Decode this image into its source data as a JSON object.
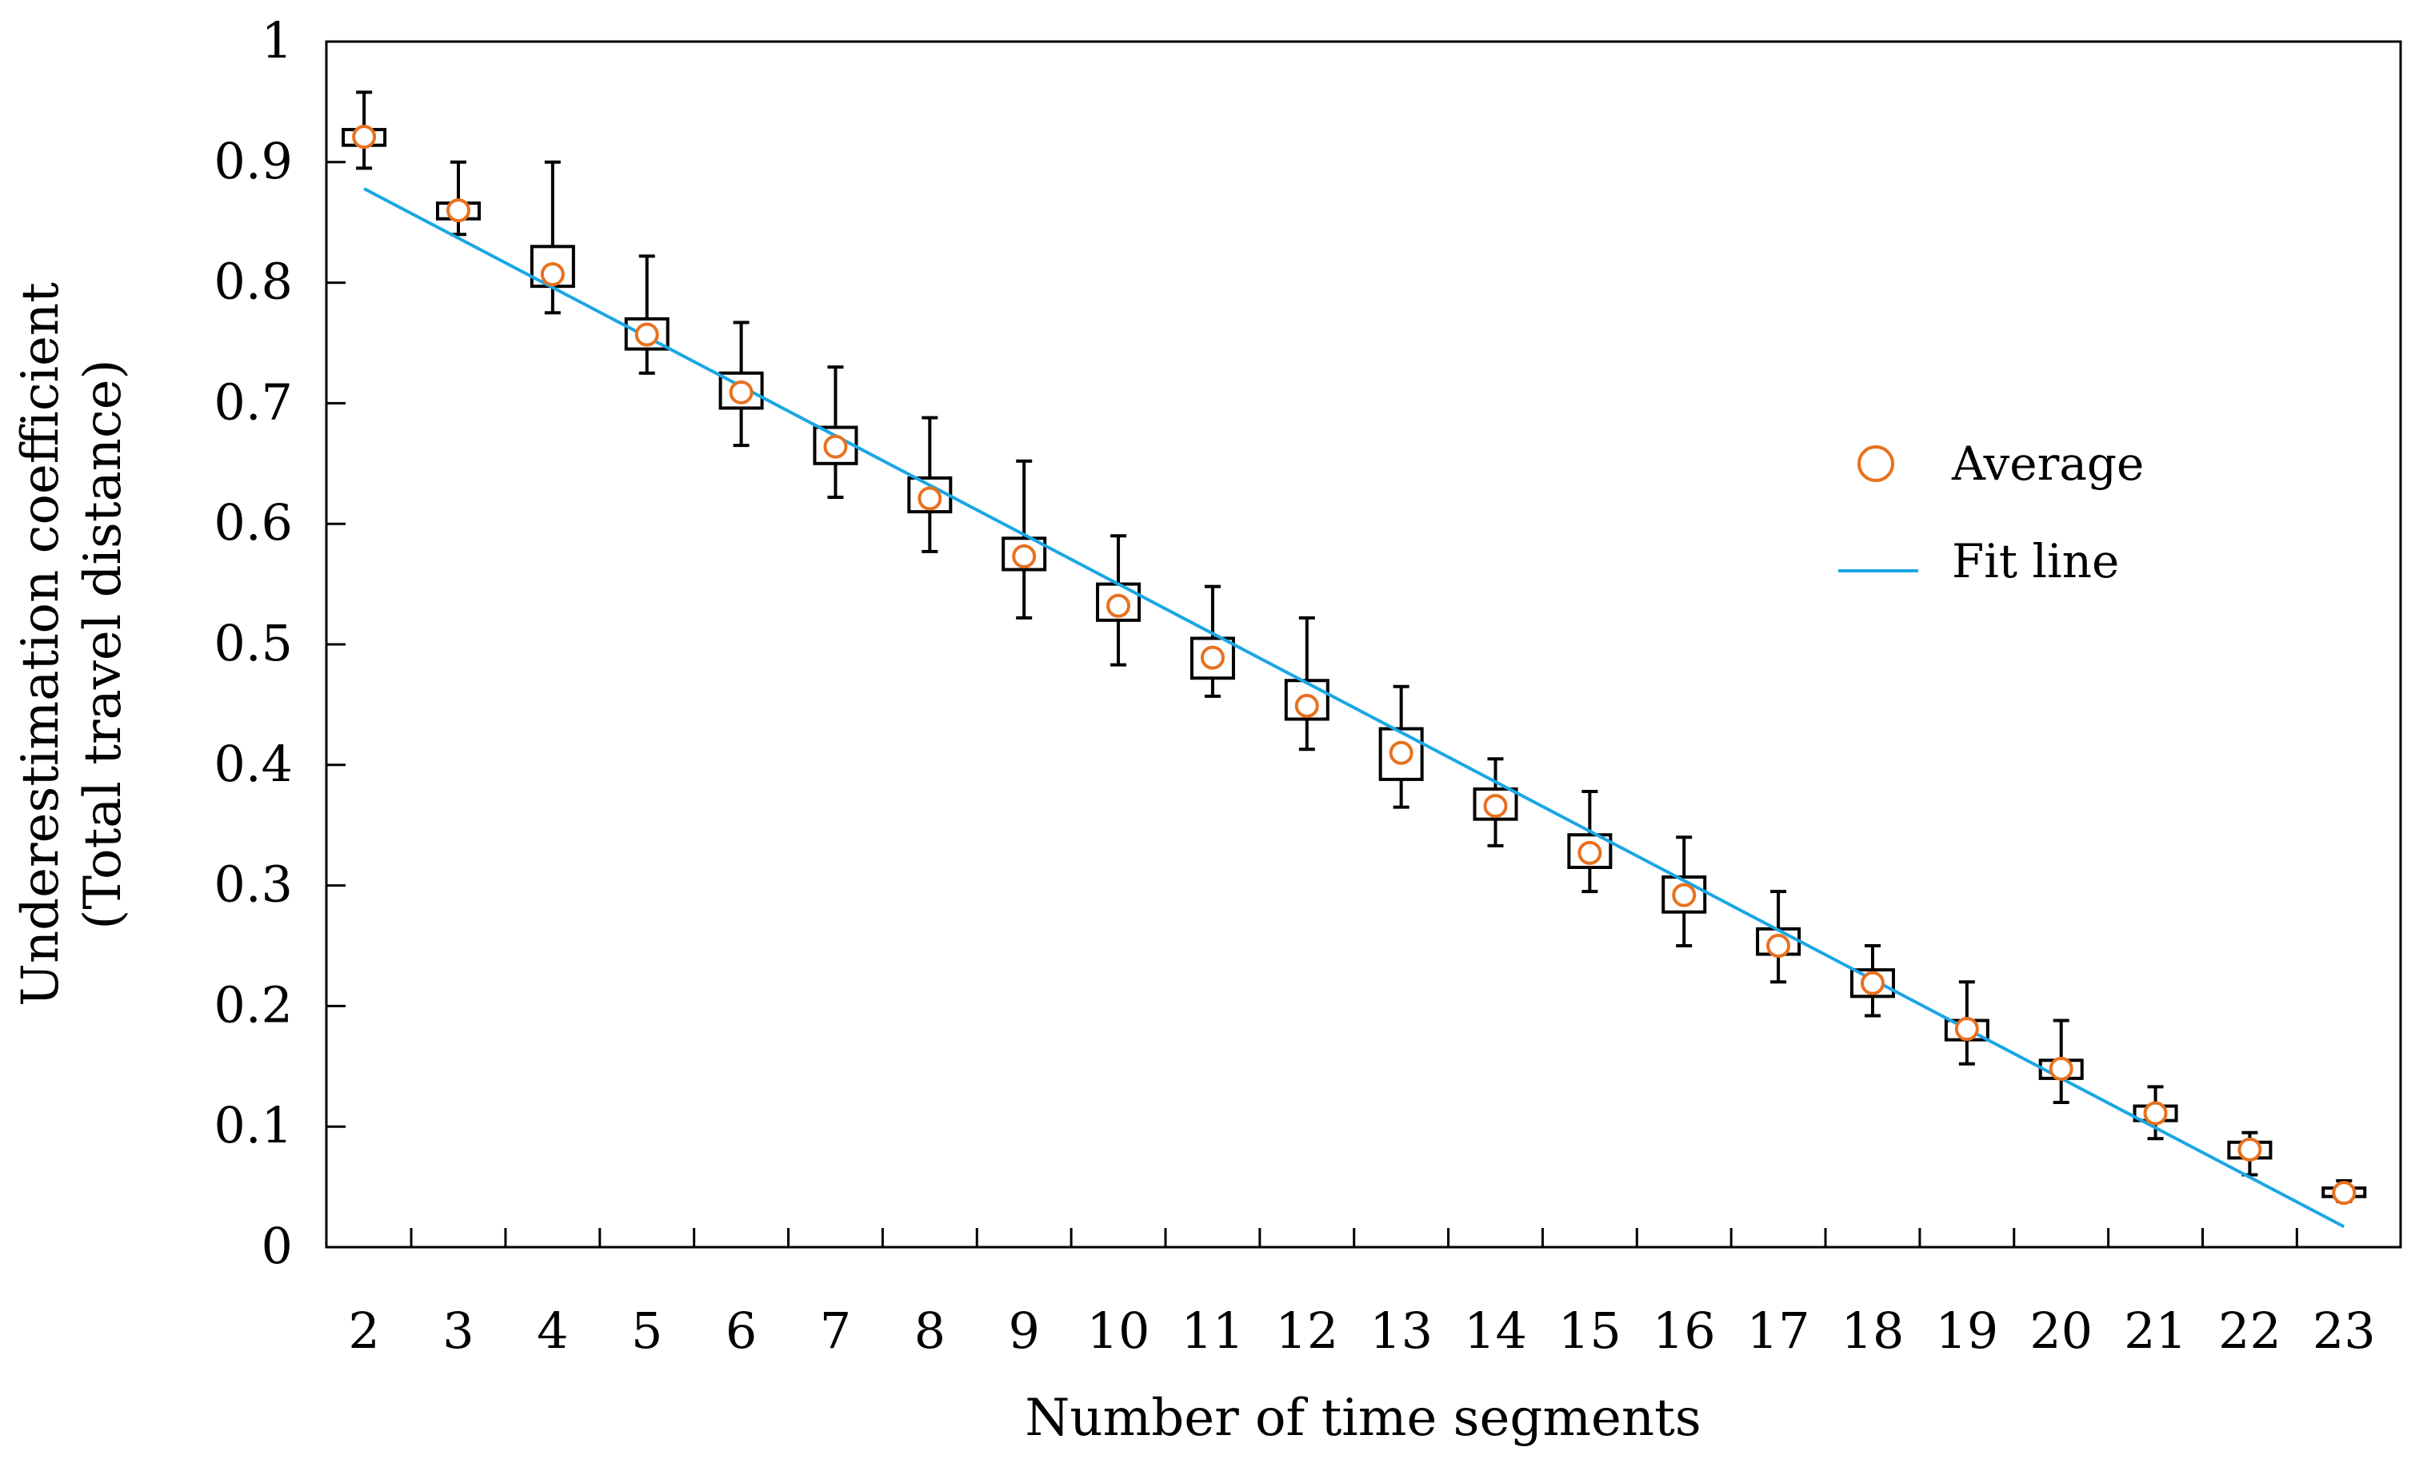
{
  "chart_data": {
    "type": "box",
    "title": "",
    "xlabel": "Number of time segments",
    "ylabel": [
      "Underestimation coefficient",
      "(Total travel distance)"
    ],
    "ylim": [
      0,
      1
    ],
    "yticks": [
      0,
      0.1,
      0.2,
      0.3,
      0.4,
      0.5,
      0.6,
      0.7,
      0.8,
      0.9,
      1
    ],
    "ytick_labels": [
      "0",
      "0.1",
      "0.2",
      "0.3",
      "0.4",
      "0.5",
      "0.6",
      "0.7",
      "0.8",
      "0.9",
      "1"
    ],
    "xlim": [
      1.6,
      23.6
    ],
    "categories": [
      "2",
      "3",
      "4",
      "5",
      "6",
      "7",
      "8",
      "9",
      "10",
      "11",
      "12",
      "13",
      "14",
      "15",
      "16",
      "17",
      "18",
      "19",
      "20",
      "21",
      "22",
      "23"
    ],
    "boxes": [
      {
        "x": 2,
        "min": 0.895,
        "q1": 0.914,
        "q3": 0.927,
        "max": 0.958,
        "avg": 0.921
      },
      {
        "x": 3,
        "min": 0.84,
        "q1": 0.853,
        "q3": 0.866,
        "max": 0.9,
        "avg": 0.86
      },
      {
        "x": 4,
        "min": 0.775,
        "q1": 0.797,
        "q3": 0.83,
        "max": 0.9,
        "avg": 0.807
      },
      {
        "x": 5,
        "min": 0.725,
        "q1": 0.745,
        "q3": 0.77,
        "max": 0.822,
        "avg": 0.757
      },
      {
        "x": 6,
        "min": 0.665,
        "q1": 0.696,
        "q3": 0.725,
        "max": 0.767,
        "avg": 0.709
      },
      {
        "x": 7,
        "min": 0.622,
        "q1": 0.65,
        "q3": 0.68,
        "max": 0.73,
        "avg": 0.664
      },
      {
        "x": 8,
        "min": 0.577,
        "q1": 0.61,
        "q3": 0.638,
        "max": 0.688,
        "avg": 0.621
      },
      {
        "x": 9,
        "min": 0.522,
        "q1": 0.562,
        "q3": 0.588,
        "max": 0.652,
        "avg": 0.573
      },
      {
        "x": 10,
        "min": 0.483,
        "q1": 0.52,
        "q3": 0.55,
        "max": 0.59,
        "avg": 0.532
      },
      {
        "x": 11,
        "min": 0.457,
        "q1": 0.472,
        "q3": 0.505,
        "max": 0.548,
        "avg": 0.489
      },
      {
        "x": 12,
        "min": 0.413,
        "q1": 0.438,
        "q3": 0.47,
        "max": 0.522,
        "avg": 0.449
      },
      {
        "x": 13,
        "min": 0.365,
        "q1": 0.388,
        "q3": 0.43,
        "max": 0.465,
        "avg": 0.41
      },
      {
        "x": 14,
        "min": 0.333,
        "q1": 0.355,
        "q3": 0.38,
        "max": 0.405,
        "avg": 0.366
      },
      {
        "x": 15,
        "min": 0.295,
        "q1": 0.315,
        "q3": 0.342,
        "max": 0.378,
        "avg": 0.327
      },
      {
        "x": 16,
        "min": 0.25,
        "q1": 0.278,
        "q3": 0.307,
        "max": 0.34,
        "avg": 0.292
      },
      {
        "x": 17,
        "min": 0.22,
        "q1": 0.243,
        "q3": 0.264,
        "max": 0.295,
        "avg": 0.25
      },
      {
        "x": 18,
        "min": 0.192,
        "q1": 0.208,
        "q3": 0.23,
        "max": 0.25,
        "avg": 0.219
      },
      {
        "x": 19,
        "min": 0.152,
        "q1": 0.172,
        "q3": 0.188,
        "max": 0.22,
        "avg": 0.181
      },
      {
        "x": 20,
        "min": 0.12,
        "q1": 0.14,
        "q3": 0.155,
        "max": 0.188,
        "avg": 0.148
      },
      {
        "x": 21,
        "min": 0.09,
        "q1": 0.105,
        "q3": 0.117,
        "max": 0.133,
        "avg": 0.111
      },
      {
        "x": 22,
        "min": 0.06,
        "q1": 0.074,
        "q3": 0.087,
        "max": 0.095,
        "avg": 0.081
      },
      {
        "x": 23,
        "min": 0.038,
        "q1": 0.042,
        "q3": 0.049,
        "max": 0.055,
        "avg": 0.045
      }
    ],
    "fit_line": {
      "x": [
        2,
        23
      ],
      "y": [
        0.878,
        0.017
      ]
    },
    "legend": {
      "position": "right",
      "entries": [
        {
          "label": "Average",
          "marker": "circle",
          "color": "#E8711E"
        },
        {
          "label": "Fit line",
          "marker": "line",
          "color": "#1AA7E4"
        }
      ]
    },
    "grid": false
  },
  "colors": {
    "average": "#E8711E",
    "fit_line": "#1AA7E4",
    "box": "#000000"
  }
}
